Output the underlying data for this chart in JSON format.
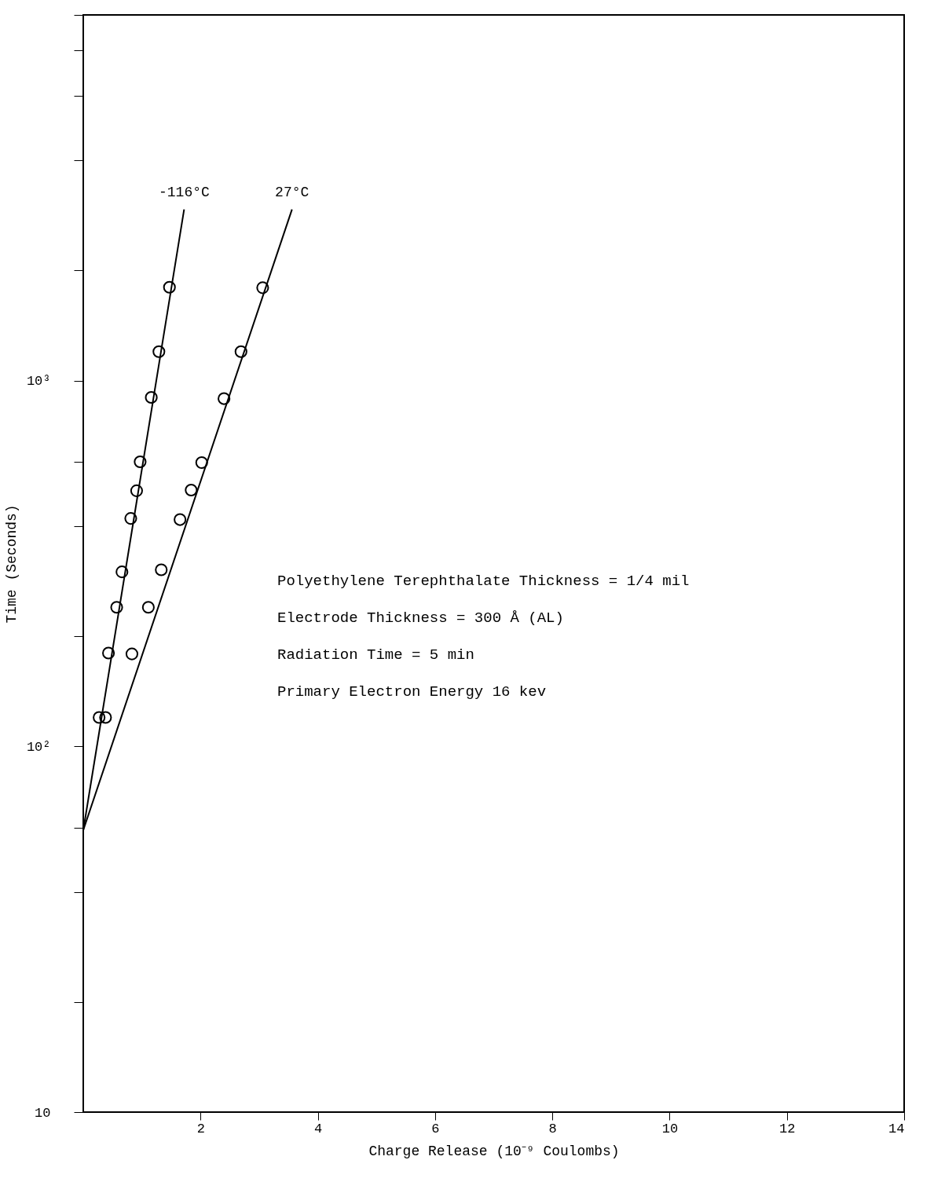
{
  "chart_data": {
    "type": "scatter",
    "xlabel": "Charge Release (10⁻⁹ Coulombs)",
    "ylabel": "Time (Seconds)",
    "log": "y",
    "xlim": [
      0,
      14
    ],
    "xticks": [
      2,
      4,
      6,
      8,
      10,
      12,
      14
    ],
    "ylim": [
      10,
      10000
    ],
    "yticks": [
      10,
      {
        "value": 20,
        "label": null
      },
      {
        "value": 40,
        "label": null
      },
      {
        "value": 60,
        "label": null
      },
      {
        "value": 100,
        "label": "10²"
      },
      {
        "value": 200,
        "label": null
      },
      {
        "value": 400,
        "label": null
      },
      {
        "value": 600,
        "label": null
      },
      {
        "value": 1000,
        "label": "10³"
      },
      {
        "value": 2000,
        "label": null
      },
      {
        "value": 4000,
        "label": null
      },
      {
        "value": 6000,
        "label": null
      },
      {
        "value": 8000,
        "label": null
      },
      {
        "value": 10000,
        "label": null
      }
    ],
    "grid": false,
    "legend": false,
    "marker": "circle",
    "series": [
      {
        "name": "-116°C",
        "type": "line",
        "marker": "none",
        "color": "#000000",
        "x": [
          0,
          1.72
        ],
        "values": [
          59,
          2940
        ]
      },
      {
        "name": "27°C",
        "type": "line",
        "marker": "none",
        "color": "#000000",
        "x": [
          0,
          3.56
        ],
        "values": [
          59,
          2940
        ]
      },
      {
        "color": "#000000",
        "x": [
          0.27,
          0.43,
          0.57,
          0.66,
          0.81,
          0.91,
          0.97,
          1.16,
          1.29,
          1.47
        ],
        "values": [
          120,
          180,
          240,
          300,
          420,
          500,
          600,
          900,
          1200,
          1800
        ]
      },
      {
        "color": "#000000",
        "x": [
          0.38,
          0.83,
          1.11,
          1.33,
          1.65,
          1.84,
          2.02,
          2.4,
          2.69,
          3.06
        ],
        "values": [
          120,
          179,
          240,
          304,
          417,
          502,
          597,
          893,
          1200,
          1795
        ]
      }
    ],
    "annotations": [
      "Polyethylene Terephthalate Thickness = 1/4 mil",
      "Electrode Thickness = 300 Å (AL)",
      "Radiation Time = 5 min",
      "Primary Electron Energy 16 kev"
    ]
  }
}
